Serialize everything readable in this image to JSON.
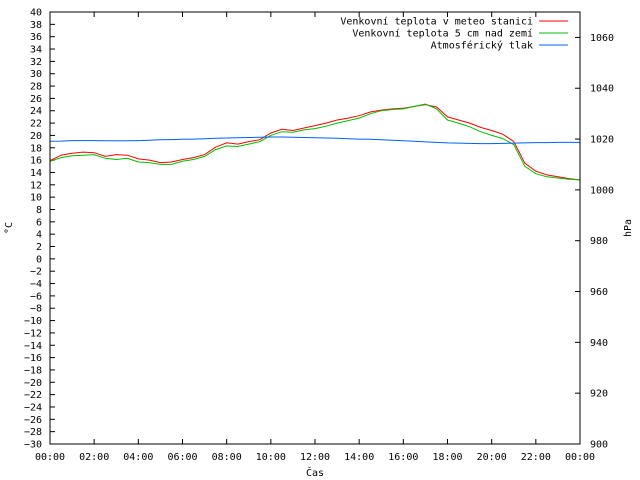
{
  "chart_data": {
    "type": "line",
    "title": "",
    "xlabel": "Čas",
    "ylabel": "°C",
    "y2label": "hPa",
    "x_ticks": [
      "00:00",
      "02:00",
      "04:00",
      "06:00",
      "08:00",
      "10:00",
      "12:00",
      "14:00",
      "16:00",
      "18:00",
      "20:00",
      "22:00",
      "00:00"
    ],
    "ylim": [
      -30,
      40
    ],
    "y_step": 2,
    "y2lim": [
      900,
      1070
    ],
    "y2_ticks": [
      900,
      920,
      940,
      960,
      980,
      1000,
      1020,
      1040,
      1060
    ],
    "grid": false,
    "legend_position": "top-right",
    "x_hours": [
      0,
      0.5,
      1,
      1.5,
      2,
      2.5,
      3,
      3.5,
      4,
      4.5,
      5,
      5.5,
      6,
      6.5,
      7,
      7.5,
      8,
      8.5,
      9,
      9.5,
      10,
      10.5,
      11,
      11.5,
      12,
      12.5,
      13,
      13.5,
      14,
      14.5,
      15,
      15.5,
      16,
      16.5,
      17,
      17.5,
      18,
      18.5,
      19,
      19.5,
      20,
      20.5,
      21,
      21.5,
      22,
      22.5,
      23,
      23.5,
      24
    ],
    "series": [
      {
        "name": "Venkovní teplota v meteo stanici",
        "color": "#ff0000",
        "axis": "left",
        "values": [
          15.9,
          16.8,
          17.1,
          17.3,
          17.2,
          16.6,
          16.9,
          16.8,
          16.2,
          16.0,
          15.6,
          15.7,
          16.1,
          16.4,
          16.9,
          18.1,
          18.8,
          18.6,
          19.0,
          19.3,
          20.4,
          21.0,
          20.8,
          21.2,
          21.6,
          22.0,
          22.5,
          22.8,
          23.2,
          23.8,
          24.1,
          24.3,
          24.4,
          24.7,
          25.0,
          24.6,
          23.0,
          22.5,
          22.0,
          21.3,
          20.8,
          20.2,
          19.0,
          15.5,
          14.2,
          13.6,
          13.3,
          13.0,
          12.8
        ]
      },
      {
        "name": "Venkovní teplota 5 cm nad zemí",
        "color": "#00c000",
        "axis": "left",
        "values": [
          15.8,
          16.4,
          16.7,
          16.8,
          16.9,
          16.3,
          16.1,
          16.3,
          15.7,
          15.6,
          15.3,
          15.3,
          15.8,
          16.1,
          16.6,
          17.7,
          18.3,
          18.2,
          18.6,
          19.0,
          20.0,
          20.6,
          20.5,
          20.9,
          21.1,
          21.5,
          22.0,
          22.4,
          22.8,
          23.5,
          24.0,
          24.2,
          24.3,
          24.7,
          25.1,
          24.3,
          22.5,
          22.0,
          21.4,
          20.6,
          20.0,
          19.5,
          18.5,
          15.0,
          13.8,
          13.3,
          13.1,
          12.9,
          12.8
        ]
      },
      {
        "name": "Atmosférický tlak",
        "color": "#0060ff",
        "axis": "right",
        "values": [
          1019.1,
          1019.2,
          1019.4,
          1019.4,
          1019.4,
          1019.3,
          1019.3,
          1019.3,
          1019.4,
          1019.5,
          1019.7,
          1019.8,
          1019.9,
          1020.0,
          1020.1,
          1020.3,
          1020.4,
          1020.5,
          1020.6,
          1020.7,
          1020.8,
          1020.8,
          1020.7,
          1020.6,
          1020.5,
          1020.4,
          1020.3,
          1020.1,
          1020.0,
          1019.9,
          1019.7,
          1019.5,
          1019.3,
          1019.1,
          1018.9,
          1018.7,
          1018.5,
          1018.4,
          1018.3,
          1018.2,
          1018.2,
          1018.3,
          1018.4,
          1018.5,
          1018.6,
          1018.6,
          1018.7,
          1018.7,
          1018.7
        ]
      }
    ]
  }
}
